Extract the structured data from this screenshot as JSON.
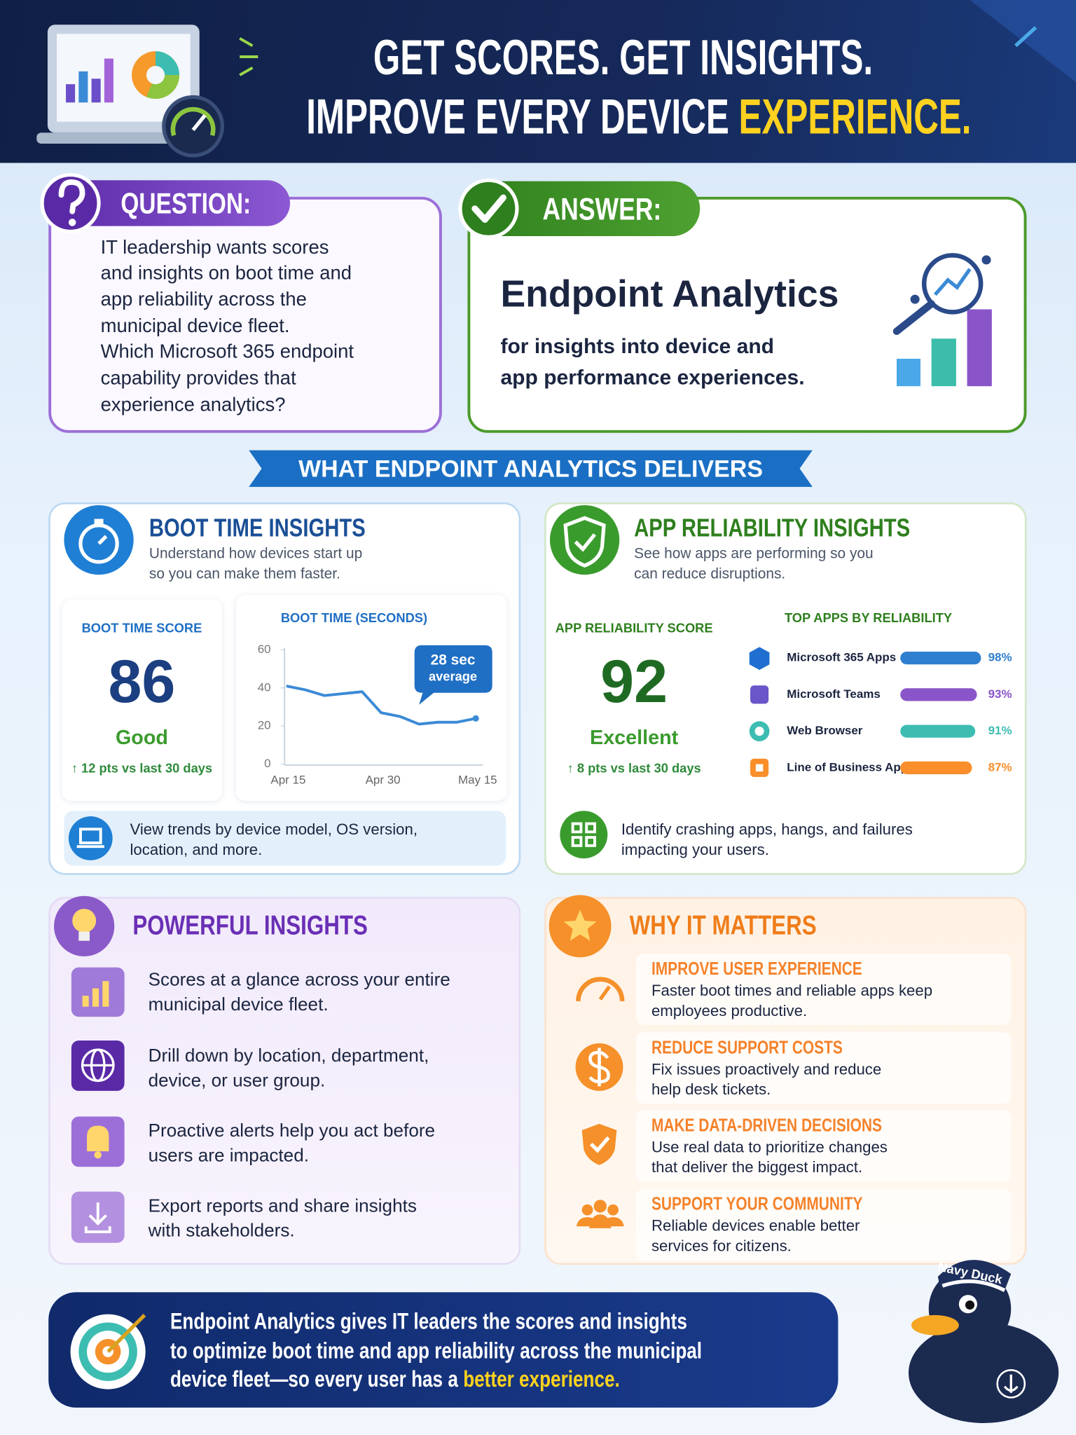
{
  "header": {
    "title_line1": "GET SCORES. GET INSIGHTS.",
    "title_line2": "IMPROVE EVERY DEVICE",
    "title_highlight": "EXPERIENCE."
  },
  "question": {
    "label": "QUESTION:",
    "lines": [
      "IT leadership wants scores",
      "and insights on boot time and",
      "app reliability across the",
      "municipal device fleet.",
      "Which Microsoft 365 endpoint",
      "capability provides that",
      "experience analytics?"
    ]
  },
  "answer": {
    "label": "ANSWER:",
    "title": "Endpoint Analytics",
    "lines": [
      "for insights into device and",
      "app performance experiences."
    ]
  },
  "banner": "WHAT ENDPOINT ANALYTICS DELIVERS",
  "boot_time": {
    "title": "BOOT TIME INSIGHTS",
    "description": [
      "Understand how devices start up",
      "so you can make them faster."
    ],
    "score_label": "BOOT TIME SCORE",
    "score": 86,
    "rating": "Good",
    "change": "↑ 12 pts vs last 30 days",
    "chart": {
      "type": "line",
      "title": "BOOT TIME (SECONDS)",
      "categories": [
        "Apr 15",
        null,
        null,
        null,
        null,
        "Apr 30",
        null,
        null,
        null,
        null,
        "May 15"
      ],
      "values": [
        41,
        39,
        36,
        37,
        38,
        27,
        25,
        21,
        22,
        22,
        24
      ],
      "ylim": [
        0,
        60
      ],
      "yticks": [
        0,
        20,
        40,
        60
      ],
      "color": "#3b8ad6",
      "annotation": [
        "28 sec",
        "average"
      ]
    },
    "footer": [
      "View trends by device model, OS version,",
      "location, and more."
    ]
  },
  "app_reliability": {
    "title": "APP RELIABILITY INSIGHTS",
    "description": [
      "See how apps are performing so you",
      "can reduce disruptions."
    ],
    "score_label": "APP RELIABILITY SCORE",
    "score": 92,
    "rating": "Excellent",
    "change": "↑ 8 pts vs last 30 days",
    "chart": {
      "type": "bar",
      "orientation": "horizontal",
      "title": "TOP APPS BY RELIABILITY",
      "categories": [
        "Microsoft 365 Apps",
        "Microsoft Teams",
        "Web Browser",
        "Line of Business App"
      ],
      "values": [
        98,
        93,
        91,
        87
      ],
      "value_labels": [
        "98%",
        "93%",
        "91%",
        "87%"
      ],
      "colors": [
        "#2f7fd0",
        "#8a55c9",
        "#3dbdb2",
        "#f98e2b"
      ],
      "xlim": [
        0,
        100
      ]
    },
    "footer": [
      "Identify crashing apps, hangs, and failures",
      "impacting your users."
    ]
  },
  "powerful_insights": {
    "title": "POWERFUL INSIGHTS",
    "items": [
      [
        "Scores at a glance across your entire",
        "municipal device fleet."
      ],
      [
        "Drill down by location, department,",
        "device, or user group."
      ],
      [
        "Proactive alerts help you act before",
        "users are impacted."
      ],
      [
        "Export reports and share insights",
        "with stakeholders."
      ]
    ]
  },
  "why_it_matters": {
    "title": "WHY IT MATTERS",
    "items": [
      {
        "heading": "IMPROVE USER EXPERIENCE",
        "lines": [
          "Faster boot times and reliable apps keep",
          "employees productive."
        ]
      },
      {
        "heading": "REDUCE SUPPORT COSTS",
        "lines": [
          "Fix issues proactively and reduce",
          "help desk tickets."
        ]
      },
      {
        "heading": "MAKE DATA-DRIVEN DECISIONS",
        "lines": [
          "Use real data to prioritize changes",
          "that deliver the biggest impact."
        ]
      },
      {
        "heading": "SUPPORT YOUR COMMUNITY",
        "lines": [
          "Reliable devices enable better",
          "services for citizens."
        ]
      }
    ]
  },
  "summary": {
    "lines": [
      "Endpoint Analytics gives IT leaders the scores and insights",
      "to optimize boot time and app reliability across the municipal",
      "device fleet—so every user has a"
    ],
    "highlight": "better experience."
  },
  "mascot": "Navy Duck"
}
